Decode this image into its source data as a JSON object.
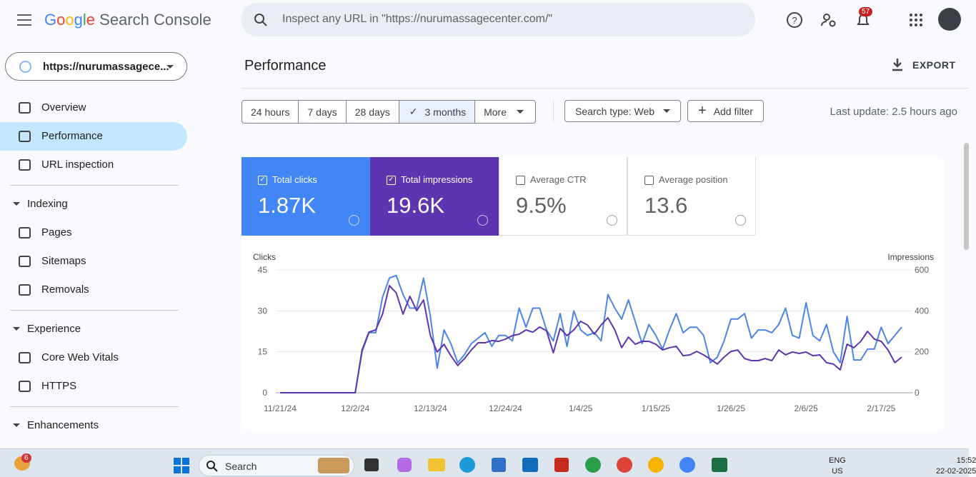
{
  "header": {
    "brand": "Google",
    "product": "Search Console",
    "search_placeholder": "Inspect any URL in \"https://nurumassagecenter.com/\"",
    "notifications": "57"
  },
  "property": "https://nurumassagece...",
  "sidebar": {
    "top": [
      "Overview",
      "Performance",
      "URL inspection"
    ],
    "sections": [
      {
        "title": "Indexing",
        "items": [
          "Pages",
          "Sitemaps",
          "Removals"
        ]
      },
      {
        "title": "Experience",
        "items": [
          "Core Web Vitals",
          "HTTPS"
        ]
      },
      {
        "title": "Enhancements",
        "items": []
      }
    ]
  },
  "page": {
    "title": "Performance",
    "export": "EXPORT",
    "last_update": "Last update: 2.5 hours ago"
  },
  "filters": {
    "ranges": [
      "24 hours",
      "7 days",
      "28 days",
      "3 months",
      "More"
    ],
    "search_type": "Search type: Web",
    "add_filter": "Add filter"
  },
  "metrics": [
    {
      "label": "Total clicks",
      "value": "1.87K"
    },
    {
      "label": "Total impressions",
      "value": "19.6K"
    },
    {
      "label": "Average CTR",
      "value": "9.5%"
    },
    {
      "label": "Average position",
      "value": "13.6"
    }
  ],
  "chart_data": {
    "type": "line",
    "categories": [
      "11/21/24",
      null,
      null,
      null,
      null,
      null,
      null,
      null,
      null,
      null,
      null,
      "12/2/24",
      null,
      null,
      null,
      null,
      null,
      null,
      null,
      null,
      null,
      null,
      "12/13/24",
      null,
      null,
      null,
      null,
      null,
      null,
      null,
      null,
      null,
      null,
      "12/24/24",
      null,
      null,
      null,
      null,
      null,
      null,
      null,
      null,
      null,
      null,
      "1/4/25",
      null,
      null,
      null,
      null,
      null,
      null,
      null,
      null,
      null,
      null,
      "1/15/25",
      null,
      null,
      null,
      null,
      null,
      null,
      null,
      null,
      null,
      null,
      "1/26/25",
      null,
      null,
      null,
      null,
      null,
      null,
      null,
      null,
      null,
      null,
      "2/6/25",
      null,
      null,
      null,
      null,
      null,
      null,
      null,
      null,
      null,
      null,
      "2/17/25",
      null,
      null,
      null
    ],
    "series": [
      {
        "name": "Clicks",
        "color": "#4a86e8",
        "values": [
          0,
          0,
          0,
          0,
          0,
          0,
          0,
          0,
          0,
          0,
          0,
          0,
          15,
          22,
          22,
          35,
          42,
          43,
          36,
          31,
          31,
          42,
          28,
          9,
          23,
          18,
          11,
          14,
          18,
          20,
          22,
          17,
          21,
          21,
          19,
          31,
          24,
          31,
          31,
          23,
          19,
          29,
          17,
          30,
          23,
          21,
          22,
          19,
          36,
          31,
          27,
          34,
          26,
          18,
          25,
          21,
          16,
          23,
          29,
          22,
          24,
          24,
          21,
          11,
          13,
          19,
          27,
          27,
          29,
          20,
          23,
          23,
          22,
          25,
          31,
          21,
          20,
          33,
          21,
          19,
          25,
          15,
          11,
          28,
          12,
          12,
          16,
          16,
          24,
          18,
          21,
          24
        ]
      },
      {
        "name": "Impressions",
        "color": "#5e35b1",
        "axis": "y2",
        "values": [
          0,
          0,
          0,
          0,
          0,
          0,
          0,
          0,
          0,
          0,
          0,
          0,
          209,
          296,
          307,
          384,
          523,
          488,
          384,
          471,
          401,
          453,
          279,
          199,
          237,
          181,
          133,
          167,
          209,
          244,
          244,
          255,
          251,
          262,
          279,
          286,
          307,
          296,
          321,
          303,
          195,
          314,
          279,
          307,
          349,
          331,
          286,
          331,
          366,
          307,
          220,
          272,
          237,
          251,
          251,
          237,
          209,
          220,
          227,
          181,
          185,
          202,
          185,
          164,
          140,
          174,
          202,
          209,
          167,
          157,
          157,
          167,
          157,
          209,
          185,
          199,
          192,
          199,
          181,
          185,
          147,
          140,
          112,
          237,
          220,
          251,
          300,
          262,
          251,
          209,
          147,
          174
        ]
      }
    ],
    "ylim": [
      0,
      45
    ],
    "yticks": [
      0,
      15,
      30,
      45
    ],
    "y2lim": [
      0,
      600
    ],
    "y2ticks": [
      0,
      200,
      400,
      600
    ],
    "grid": true
  },
  "taskbar": {
    "badge": "6",
    "search": "Search",
    "lang": "ENG",
    "region": "US",
    "time": "15:52",
    "date": "22-02-2025"
  }
}
